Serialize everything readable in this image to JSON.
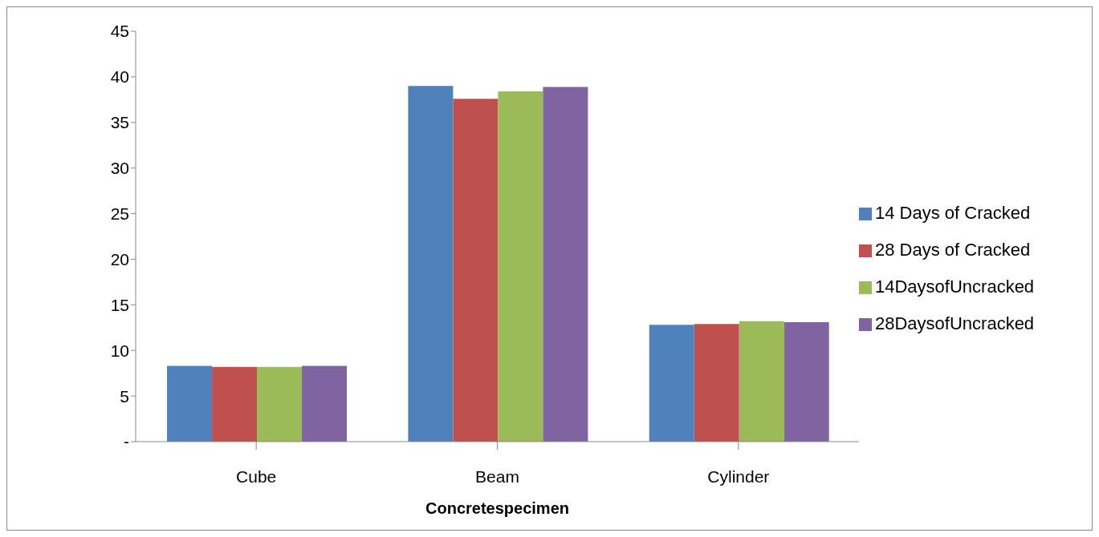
{
  "chart_data": {
    "type": "bar",
    "xlabel": "Concretespecimen",
    "categories": [
      "Cube",
      "Beam",
      "Cylinder"
    ],
    "series": [
      {
        "name": "14 Days of Cracked",
        "color": "#4f81bd",
        "values": [
          8.3,
          39.0,
          12.8
        ]
      },
      {
        "name": "28 Days of Cracked",
        "color": "#c0504d",
        "values": [
          8.2,
          37.6,
          12.9
        ]
      },
      {
        "name": "14DaysofUncracked",
        "color": "#9bbb59",
        "values": [
          8.2,
          38.4,
          13.2
        ]
      },
      {
        "name": "28DaysofUncracked",
        "color": "#8064a2",
        "values": [
          8.3,
          38.9,
          13.1
        ]
      }
    ],
    "ylim": [
      0,
      45
    ],
    "yticks": [
      {
        "value": 0,
        "label": "-"
      },
      5,
      10,
      15,
      20,
      25,
      30,
      35,
      40,
      45
    ],
    "grid": false,
    "legend": "right"
  }
}
